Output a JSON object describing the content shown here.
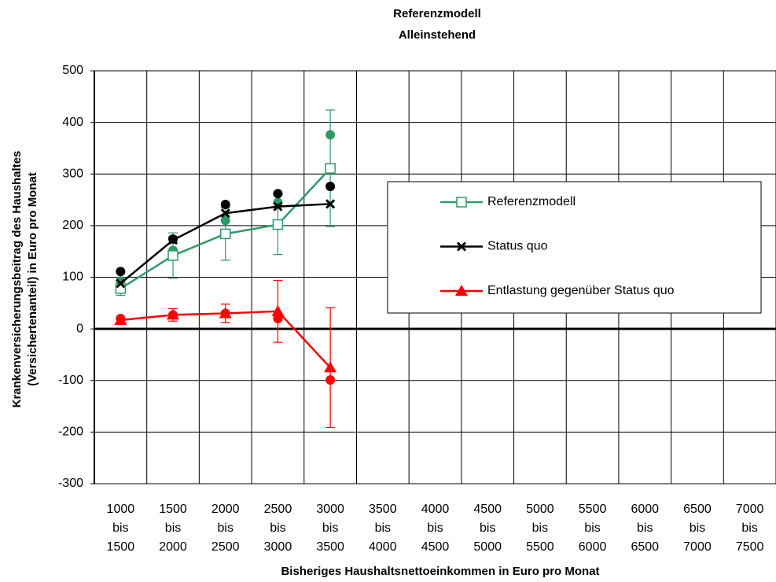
{
  "chart_data": {
    "type": "line",
    "title": "Referenzmodell",
    "subtitle": "Alleinstehend",
    "y_label": "Krankenversicherungsbeitrag des Haushaltes",
    "y_label_2": "(Versichertenanteil) in Euro pro Monat",
    "x_label": "Bisheriges Haushaltsnettoeinkommen in Euro pro Monat",
    "categories": [
      "1000 bis 1500",
      "1500 bis 2000",
      "2000 bis 2500",
      "2500 bis 3000",
      "3000 bis 3500",
      "3500 bis 4000",
      "4000 bis 4500",
      "4500 bis 5000",
      "5000 bis 5500",
      "5500 bis 6000",
      "6000 bis 6500",
      "6500 bis 7000",
      "7000 bis 7500"
    ],
    "ylim": [
      -300,
      500
    ],
    "yticks": [
      -300,
      -200,
      -100,
      0,
      100,
      200,
      300,
      400,
      500
    ],
    "grid": true,
    "legend": "right",
    "series": [
      {
        "name": "Referenzmodell",
        "color": "#2e9a68",
        "marker": "square",
        "values": [
          78,
          142,
          184,
          202,
          311,
          null,
          null,
          null,
          null,
          null,
          null,
          null,
          null
        ],
        "errors": [
          13,
          44,
          51,
          58,
          113,
          null,
          null,
          null,
          null,
          null,
          null,
          null,
          null
        ],
        "circle_values": [
          93,
          152,
          210,
          245,
          376,
          null,
          null,
          null,
          null,
          null,
          null,
          null,
          null
        ]
      },
      {
        "name": "Status quo",
        "color": "#000000",
        "marker": "x",
        "values": [
          88,
          172,
          224,
          237,
          242,
          null,
          null,
          null,
          null,
          null,
          null,
          null,
          null
        ],
        "circle_values": [
          111,
          174,
          241,
          262,
          276,
          null,
          null,
          null,
          null,
          null,
          null,
          null,
          null
        ]
      },
      {
        "name": "Entlastung gegenüber Status quo",
        "color": "#ff0000",
        "marker": "triangle",
        "values": [
          17,
          27,
          30,
          34,
          -75,
          null,
          null,
          null,
          null,
          null,
          null,
          null,
          null
        ],
        "errors": [
          5,
          12,
          18,
          60,
          116,
          null,
          null,
          null,
          null,
          null,
          null,
          null,
          null
        ],
        "circle_values": [
          20,
          27,
          30,
          20,
          -99,
          null,
          null,
          null,
          null,
          null,
          null,
          null,
          null
        ]
      }
    ]
  }
}
